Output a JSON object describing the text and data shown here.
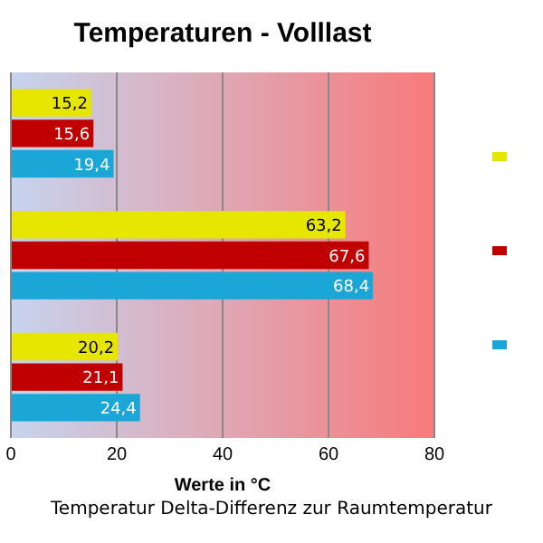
{
  "chart_data": {
    "type": "bar",
    "orientation": "horizontal",
    "title": "Temperaturen - Volllast",
    "xlabel": "Werte in °C",
    "annotations": [
      "Temperatur Delta-Differenz zur Raumtemperatur"
    ],
    "categories": [
      null,
      null,
      null
    ],
    "series": [
      {
        "color": "#e6e600",
        "values": [
          15.2,
          63.2,
          20.2
        ],
        "value_labels": [
          "15,2",
          "63,2",
          "20,2"
        ]
      },
      {
        "color": "#c00000",
        "values": [
          15.6,
          67.6,
          21.1
        ],
        "value_labels": [
          "15,6",
          "67,6",
          "21,1"
        ]
      },
      {
        "color": "#1aa6d6",
        "values": [
          19.4,
          68.4,
          24.4
        ],
        "value_labels": [
          "19,4",
          "68,4",
          "24,4"
        ]
      }
    ],
    "xlim": [
      0,
      80
    ],
    "xticks": [
      0,
      20,
      40,
      60,
      80
    ],
    "grid": "x"
  }
}
